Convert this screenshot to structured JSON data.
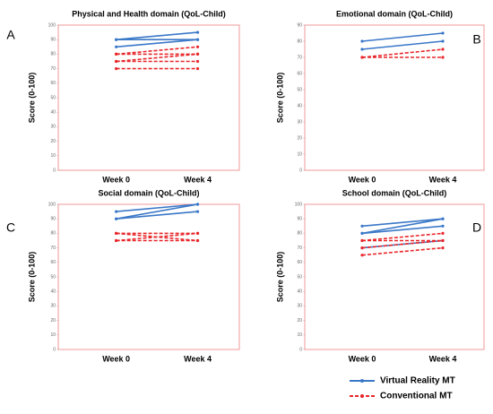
{
  "chart_data": [
    {
      "type": "line",
      "label": "A",
      "title": "Physical and Health domain (QoL-Child)",
      "ylabel": "Score (0-100)",
      "categories": [
        "Week 0",
        "Week 4"
      ],
      "ylim": [
        0,
        100
      ],
      "yticks": [
        0,
        10,
        20,
        30,
        40,
        50,
        60,
        70,
        80,
        90,
        100
      ],
      "series": [
        {
          "values": [
            [
              90,
              95
            ],
            [
              90,
              90
            ],
            [
              85,
              90
            ]
          ]
        },
        {
          "values": [
            [
              80,
              85
            ],
            [
              80,
              80
            ],
            [
              75,
              80
            ],
            [
              75,
              75
            ],
            [
              70,
              70
            ]
          ]
        }
      ]
    },
    {
      "type": "line",
      "label": "B",
      "title": "Emotional domain (QoL-Child)",
      "ylabel": "Score (0-100)",
      "categories": [
        "Week 0",
        "Week 4"
      ],
      "ylim": [
        0,
        90
      ],
      "yticks": [
        0,
        10,
        20,
        30,
        40,
        50,
        60,
        70,
        80,
        90
      ],
      "series": [
        {
          "values": [
            [
              80,
              85
            ],
            [
              75,
              80
            ]
          ]
        },
        {
          "values": [
            [
              70,
              75
            ],
            [
              70,
              70
            ]
          ]
        }
      ]
    },
    {
      "type": "line",
      "label": "C",
      "title": "Social domain (QoL-Child)",
      "ylabel": "Score (0-100)",
      "categories": [
        "Week 0",
        "Week 4"
      ],
      "ylim": [
        0,
        100
      ],
      "yticks": [
        0,
        10,
        20,
        30,
        40,
        50,
        60,
        70,
        80,
        90,
        100
      ],
      "series": [
        {
          "values": [
            [
              95,
              100
            ],
            [
              90,
              100
            ],
            [
              90,
              95
            ]
          ]
        },
        {
          "values": [
            [
              80,
              80
            ],
            [
              75,
              80
            ],
            [
              75,
              75
            ],
            [
              80,
              75
            ]
          ]
        }
      ]
    },
    {
      "type": "line",
      "label": "D",
      "title": "School domain (QoL-Child)",
      "ylabel": "Score (0-100)",
      "categories": [
        "Week 0",
        "Week 4"
      ],
      "ylim": [
        0,
        100
      ],
      "yticks": [
        0,
        10,
        20,
        30,
        40,
        50,
        60,
        70,
        80,
        90,
        100
      ],
      "series": [
        {
          "values": [
            [
              85,
              90
            ],
            [
              80,
              90
            ],
            [
              80,
              85
            ],
            [
              70,
              75
            ]
          ]
        },
        {
          "values": [
            [
              75,
              80
            ],
            [
              75,
              75
            ],
            [
              70,
              75
            ],
            [
              65,
              70
            ]
          ]
        }
      ]
    }
  ],
  "legend": [
    {
      "name": "Virtual Reality MT",
      "color": "#3a78c8",
      "dashed": false
    },
    {
      "name": "Conventional MT",
      "color": "#e8262a",
      "dashed": true
    }
  ]
}
